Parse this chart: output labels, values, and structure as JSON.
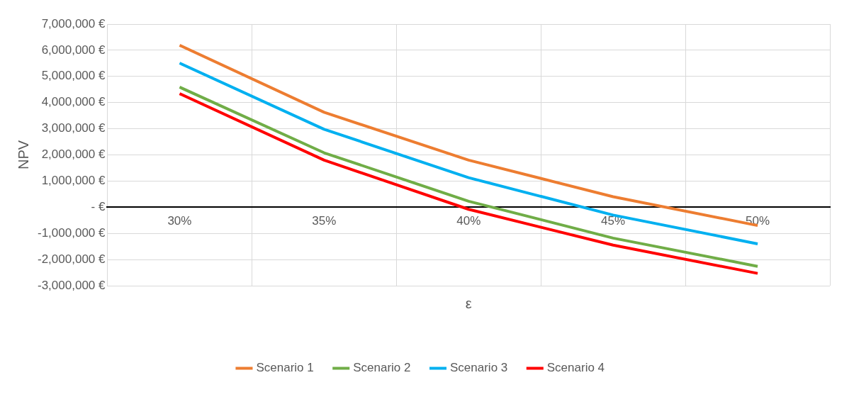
{
  "chart_data": {
    "type": "line",
    "xlabel": "ε",
    "ylabel": "NPV",
    "categories": [
      "30%",
      "35%",
      "40%",
      "45%",
      "50%"
    ],
    "series": [
      {
        "name": "Scenario 1",
        "color": "#ed7d31",
        "values": [
          6190000,
          3630000,
          1800000,
          400000,
          -700000
        ]
      },
      {
        "name": "Scenario 2",
        "color": "#70ad47",
        "values": [
          4590000,
          2080000,
          230000,
          -1180000,
          -2260000
        ]
      },
      {
        "name": "Scenario 3",
        "color": "#00b0f0",
        "values": [
          5510000,
          2980000,
          1130000,
          -300000,
          -1400000
        ]
      },
      {
        "name": "Scenario 4",
        "color": "#ff0000",
        "values": [
          4340000,
          1800000,
          -80000,
          -1450000,
          -2530000
        ]
      }
    ],
    "ylim": [
      -3000000,
      7000000
    ],
    "yticks": [
      {
        "value": -3000000,
        "label": "-3,000,000 €"
      },
      {
        "value": -2000000,
        "label": "-2,000,000 €"
      },
      {
        "value": -1000000,
        "label": "-1,000,000 €"
      },
      {
        "value": 0,
        "label": "- €"
      },
      {
        "value": 1000000,
        "label": "1,000,000 €"
      },
      {
        "value": 2000000,
        "label": "2,000,000 €"
      },
      {
        "value": 3000000,
        "label": "3,000,000 €"
      },
      {
        "value": 4000000,
        "label": "4,000,000 €"
      },
      {
        "value": 5000000,
        "label": "5,000,000 €"
      },
      {
        "value": 6000000,
        "label": "6,000,000 €"
      },
      {
        "value": 7000000,
        "label": "7,000,000 €"
      }
    ],
    "grid": true,
    "legend": "bottom",
    "marker": "none",
    "line_style": "solid"
  }
}
